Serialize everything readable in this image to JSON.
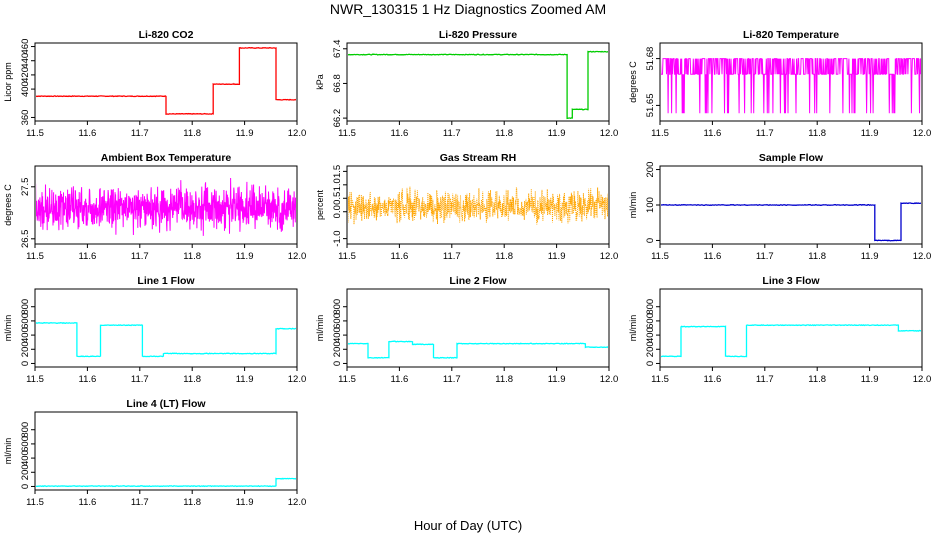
{
  "figure": {
    "title": "NWR_130315  1 Hz Diagnostics Zoomed AM",
    "xlabel": "Hour of Day (UTC)"
  },
  "chart_data": [
    {
      "type": "line",
      "title": "Li-820 CO2",
      "ylabel": "Licor ppm",
      "color": "#ff0000",
      "xlim": [
        11.5,
        12.0
      ],
      "ylim": [
        355,
        465
      ],
      "xticks": [
        "11.5",
        "11.6",
        "11.7",
        "11.8",
        "11.9",
        "12.0"
      ],
      "yticks": [
        "360",
        "400",
        "420",
        "440",
        "460"
      ],
      "series": [
        {
          "segments": [
            [
              11.5,
              11.75,
              390
            ],
            [
              11.75,
              11.84,
              365
            ],
            [
              11.84,
              11.84,
              390
            ],
            [
              11.84,
              11.88,
              407
            ],
            [
              11.88,
              11.89,
              407
            ],
            [
              11.89,
              11.96,
              458
            ],
            [
              11.96,
              12.0,
              385
            ]
          ]
        }
      ]
    },
    {
      "type": "line",
      "title": "Li-820 Pressure",
      "ylabel": "kPa",
      "color": "#00cc00",
      "xlim": [
        11.5,
        12.0
      ],
      "ylim": [
        66.15,
        67.5
      ],
      "xticks": [
        "11.5",
        "11.6",
        "11.7",
        "11.8",
        "11.9",
        "12.0"
      ],
      "yticks": [
        "66.2",
        "66.8",
        "67.4"
      ],
      "series": [
        {
          "segments": [
            [
              11.5,
              11.92,
              67.3
            ],
            [
              11.92,
              11.93,
              66.2
            ],
            [
              11.93,
              11.96,
              66.35
            ],
            [
              11.96,
              12.0,
              67.35
            ]
          ]
        }
      ]
    },
    {
      "type": "line",
      "title": "Li-820 Temperature",
      "ylabel": "degrees C",
      "color": "#ff00ff",
      "xlim": [
        11.5,
        12.0
      ],
      "ylim": [
        51.64,
        51.69
      ],
      "xticks": [
        "11.5",
        "11.6",
        "11.7",
        "11.8",
        "11.9",
        "12.0"
      ],
      "yticks": [
        "51.65",
        "51.68"
      ],
      "series": [
        {
          "levels": [
            51.68,
            51.67
          ]
        }
      ]
    },
    {
      "type": "line",
      "title": "Ambient Box Temperature",
      "ylabel": "degrees C",
      "color": "#ff00ff",
      "xlim": [
        11.5,
        12.0
      ],
      "ylim": [
        26.4,
        27.9
      ],
      "xticks": [
        "11.5",
        "11.6",
        "11.7",
        "11.8",
        "11.9",
        "12.0"
      ],
      "yticks": [
        "26.5",
        "27.5"
      ],
      "series": [
        {
          "mean": 27.1,
          "spread": 0.25
        }
      ]
    },
    {
      "type": "scatter",
      "title": "Gas Stream RH",
      "ylabel": "percent",
      "color": "#ffa500",
      "xlim": [
        11.5,
        12.0
      ],
      "ylim": [
        -1.2,
        1.7
      ],
      "xticks": [
        "11.5",
        "11.6",
        "11.7",
        "11.8",
        "11.9",
        "12.0"
      ],
      "yticks": [
        "-1.0",
        "0.0",
        "0.5",
        "1.0",
        "1.5"
      ],
      "series": [
        {
          "mean": 0.2,
          "spread": 0.35
        }
      ]
    },
    {
      "type": "line",
      "title": "Sample Flow",
      "ylabel": "ml/min",
      "color": "#0000cc",
      "xlim": [
        11.5,
        12.0
      ],
      "ylim": [
        -10,
        210
      ],
      "xticks": [
        "11.5",
        "11.6",
        "11.7",
        "11.8",
        "11.9",
        "12.0"
      ],
      "yticks": [
        "0",
        "100",
        "200"
      ],
      "series": [
        {
          "segments": [
            [
              11.5,
              11.91,
              100
            ],
            [
              11.91,
              11.96,
              0
            ],
            [
              11.96,
              12.0,
              105
            ]
          ]
        }
      ]
    },
    {
      "type": "line",
      "title": "Line 1 Flow",
      "ylabel": "ml/min",
      "color": "#00ffff",
      "xlim": [
        11.5,
        12.0
      ],
      "ylim": [
        -50,
        1050
      ],
      "xticks": [
        "11.5",
        "11.6",
        "11.7",
        "11.8",
        "11.9",
        "12.0"
      ],
      "yticks": [
        "0",
        "200",
        "400",
        "600",
        "800"
      ],
      "series": [
        {
          "segments": [
            [
              11.5,
              11.58,
              570
            ],
            [
              11.58,
              11.625,
              100
            ],
            [
              11.625,
              11.705,
              540
            ],
            [
              11.705,
              11.745,
              100
            ],
            [
              11.745,
              11.96,
              140
            ],
            [
              11.96,
              12.0,
              490
            ]
          ]
        }
      ]
    },
    {
      "type": "line",
      "title": "Line 2 Flow",
      "ylabel": "ml/min",
      "color": "#00ffff",
      "xlim": [
        11.5,
        12.0
      ],
      "ylim": [
        -50,
        1050
      ],
      "xticks": [
        "11.5",
        "11.6",
        "11.7",
        "11.8",
        "11.9",
        "12.0"
      ],
      "yticks": [
        "0",
        "200",
        "400",
        "600",
        "800"
      ],
      "series": [
        {
          "segments": [
            [
              11.5,
              11.54,
              280
            ],
            [
              11.54,
              11.58,
              80
            ],
            [
              11.58,
              11.625,
              310
            ],
            [
              11.625,
              11.665,
              270
            ],
            [
              11.665,
              11.71,
              80
            ],
            [
              11.71,
              11.955,
              280
            ],
            [
              11.955,
              12.0,
              230
            ]
          ]
        }
      ]
    },
    {
      "type": "line",
      "title": "Line 3 Flow",
      "ylabel": "ml/min",
      "color": "#00ffff",
      "xlim": [
        11.5,
        12.0
      ],
      "ylim": [
        -50,
        1050
      ],
      "xticks": [
        "11.5",
        "11.6",
        "11.7",
        "11.8",
        "11.9",
        "12.0"
      ],
      "yticks": [
        "0",
        "200",
        "400",
        "600",
        "800"
      ],
      "series": [
        {
          "segments": [
            [
              11.5,
              11.54,
              100
            ],
            [
              11.54,
              11.625,
              520
            ],
            [
              11.625,
              11.665,
              100
            ],
            [
              11.665,
              11.955,
              540
            ],
            [
              11.955,
              12.0,
              460
            ]
          ]
        }
      ]
    },
    {
      "type": "line",
      "title": "Line 4 (LT) Flow",
      "ylabel": "ml/min",
      "color": "#00ffff",
      "xlim": [
        11.5,
        12.0
      ],
      "ylim": [
        -50,
        1050
      ],
      "xticks": [
        "11.5",
        "11.6",
        "11.7",
        "11.8",
        "11.9",
        "12.0"
      ],
      "yticks": [
        "0",
        "200",
        "400",
        "600",
        "800"
      ],
      "series": [
        {
          "segments": [
            [
              11.5,
              11.96,
              5
            ],
            [
              11.96,
              12.0,
              110
            ]
          ]
        }
      ]
    }
  ]
}
